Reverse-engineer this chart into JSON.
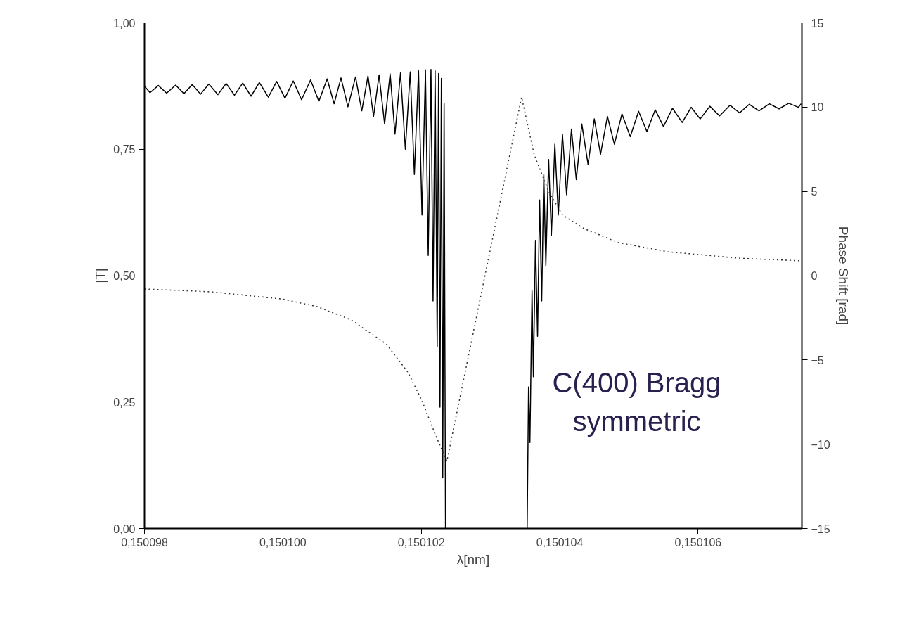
{
  "chart_data": {
    "type": "line",
    "xlabel": "λ[nm]",
    "ylabel": "|T|",
    "y2label": "Phase Shift [rad]",
    "xlim": [
      0.150098,
      0.1501075
    ],
    "xticks": [
      {
        "value": 0.150098,
        "label": "0,150098"
      },
      {
        "value": 0.1501,
        "label": "0,150100"
      },
      {
        "value": 0.150102,
        "label": "0,150102"
      },
      {
        "value": 0.150104,
        "label": "0,150104"
      },
      {
        "value": 0.150106,
        "label": "0,150106"
      }
    ],
    "ylim": [
      0,
      1
    ],
    "yticks": [
      {
        "value": 0,
        "label": "0,00"
      },
      {
        "value": 0.25,
        "label": "0,25"
      },
      {
        "value": 0.5,
        "label": "0,50"
      },
      {
        "value": 0.75,
        "label": "0,75"
      },
      {
        "value": 1,
        "label": "1,00"
      }
    ],
    "y2lim": [
      -15,
      15
    ],
    "y2ticks": [
      -15,
      -10,
      -5,
      0,
      5,
      10,
      15
    ],
    "grid": false,
    "marker": "none",
    "annotations": [
      "C(400) Bragg\nsymmetric"
    ],
    "series": [
      {
        "color": "#000000",
        "line_style": "solid",
        "x": [
          0.150098,
          0.15009808,
          0.1500982,
          0.15009832,
          0.15009845,
          0.15009857,
          0.15009869,
          0.15009881,
          0.15009893,
          0.15009906,
          0.15009918,
          0.1500993,
          0.15009942,
          0.15009954,
          0.15009966,
          0.15009979,
          0.15009991,
          0.15010003,
          0.15010015,
          0.15010027,
          0.1501004,
          0.15010052,
          0.15010064,
          0.15010074,
          0.15010084,
          0.15010094,
          0.15010105,
          0.15010114,
          0.15010123,
          0.15010131,
          0.15010139,
          0.15010147,
          0.15010155,
          0.15010162,
          0.1501017,
          0.15010177,
          0.15010184,
          0.1501019,
          0.15010196,
          0.15010201,
          0.15010206,
          0.1501021,
          0.15010214,
          0.15010217,
          0.1501022,
          0.15010223,
          0.15010225,
          0.15010227,
          0.15010229,
          0.15010231,
          0.15010233,
          0.15010235,
          0.150103,
          0.15010353,
          0.15010355,
          0.15010357,
          0.1501036,
          0.15010362,
          0.15010365,
          0.15010368,
          0.15010371,
          0.15010374,
          0.15010377,
          0.1501038,
          0.15010384,
          0.15010388,
          0.15010393,
          0.15010398,
          0.15010404,
          0.1501041,
          0.15010417,
          0.15010424,
          0.15010432,
          0.15010441,
          0.1501045,
          0.15010459,
          0.15010469,
          0.15010479,
          0.1501049,
          0.15010502,
          0.15010514,
          0.15010526,
          0.15010538,
          0.1501055,
          0.15010563,
          0.15010577,
          0.1501059,
          0.15010603,
          0.15010617,
          0.15010631,
          0.15010646,
          0.1501066,
          0.15010674,
          0.15010688,
          0.15010703,
          0.15010717,
          0.15010731,
          0.15010745,
          0.15010749
        ],
        "values": [
          0.875,
          0.862,
          0.876,
          0.861,
          0.877,
          0.86,
          0.878,
          0.859,
          0.879,
          0.858,
          0.88,
          0.857,
          0.881,
          0.855,
          0.882,
          0.853,
          0.884,
          0.851,
          0.885,
          0.848,
          0.887,
          0.845,
          0.889,
          0.84,
          0.891,
          0.834,
          0.893,
          0.826,
          0.895,
          0.815,
          0.897,
          0.8,
          0.899,
          0.78,
          0.901,
          0.75,
          0.903,
          0.7,
          0.905,
          0.62,
          0.907,
          0.54,
          0.908,
          0.45,
          0.905,
          0.36,
          0.9,
          0.24,
          0.89,
          0.1,
          0.84,
          0.0,
          null,
          0.0,
          0.28,
          0.17,
          0.47,
          0.3,
          0.57,
          0.38,
          0.65,
          0.45,
          0.7,
          0.52,
          0.73,
          0.58,
          0.76,
          0.62,
          0.78,
          0.66,
          0.79,
          0.69,
          0.8,
          0.72,
          0.81,
          0.74,
          0.815,
          0.76,
          0.82,
          0.775,
          0.825,
          0.785,
          0.828,
          0.795,
          0.831,
          0.803,
          0.833,
          0.81,
          0.835,
          0.816,
          0.837,
          0.822,
          0.839,
          0.826,
          0.84,
          0.83,
          0.841,
          0.833,
          0.84
        ]
      },
      {
        "color": "#333333",
        "line_style": "dotted",
        "axis": "y2",
        "x": [
          0.150098,
          0.15009896,
          0.15009998,
          0.15010049,
          0.15010099,
          0.1501015,
          0.15010181,
          0.15010201,
          0.15010221,
          0.15010237,
          0.15010345,
          0.15010363,
          0.15010384,
          0.15010404,
          0.15010435,
          0.15010485,
          0.15010556,
          0.15010658,
          0.15010749
        ],
        "values": [
          -0.79,
          -0.96,
          -1.38,
          -1.83,
          -2.63,
          -4.08,
          -5.75,
          -7.42,
          -9.5,
          -11.0,
          10.6,
          7.2,
          5.0,
          3.6,
          2.8,
          1.96,
          1.42,
          1.04,
          0.88
        ]
      }
    ]
  }
}
